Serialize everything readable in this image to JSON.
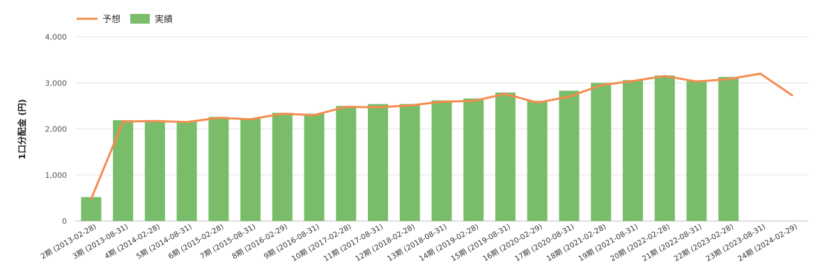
{
  "chart_data": {
    "type": "bar",
    "ylabel": "1口分配金 (円)",
    "ylim": [
      0,
      4000
    ],
    "yticks": [
      0,
      1000,
      2000,
      3000,
      4000
    ],
    "ytick_labels": [
      "0",
      "1,000",
      "2,000",
      "3,000",
      "4,000"
    ],
    "grid": true,
    "legend_position": "top-left",
    "categories": [
      "2期 (2013-02-28)",
      "3期 (2013-08-31)",
      "4期 (2014-02-28)",
      "5期 (2014-08-31)",
      "6期 (2015-02-28)",
      "7期 (2015-08-31)",
      "8期 (2016-02-29)",
      "9期 (2016-08-31)",
      "10期 (2017-02-28)",
      "11期 (2017-08-31)",
      "12期 (2018-02-28)",
      "13期 (2018-08-31)",
      "14期 (2019-02-28)",
      "15期 (2019-08-31)",
      "16期 (2020-02-29)",
      "17期 (2020-08-31)",
      "18期 (2021-02-28)",
      "19期 (2021-08-31)",
      "20期 (2022-02-28)",
      "21期 (2022-08-31)",
      "22期 (2023-02-28)",
      "23期 (2023-08-31)",
      "24期 (2024-02-29)"
    ],
    "series": [
      {
        "name": "予想",
        "type": "line",
        "color": "#f58c4f",
        "values": [
          480,
          2160,
          2170,
          2150,
          2240,
          2210,
          2330,
          2300,
          2480,
          2470,
          2510,
          2590,
          2610,
          2760,
          2570,
          2700,
          2950,
          3040,
          3150,
          3030,
          3080,
          3200,
          2730
        ]
      },
      {
        "name": "実績",
        "type": "bar",
        "color": "#79bd6b",
        "values": [
          520,
          2190,
          2190,
          2170,
          2260,
          2220,
          2350,
          2330,
          2500,
          2540,
          2540,
          2620,
          2660,
          2790,
          2610,
          2830,
          3000,
          3060,
          3160,
          3040,
          3130,
          null,
          null
        ]
      }
    ]
  }
}
